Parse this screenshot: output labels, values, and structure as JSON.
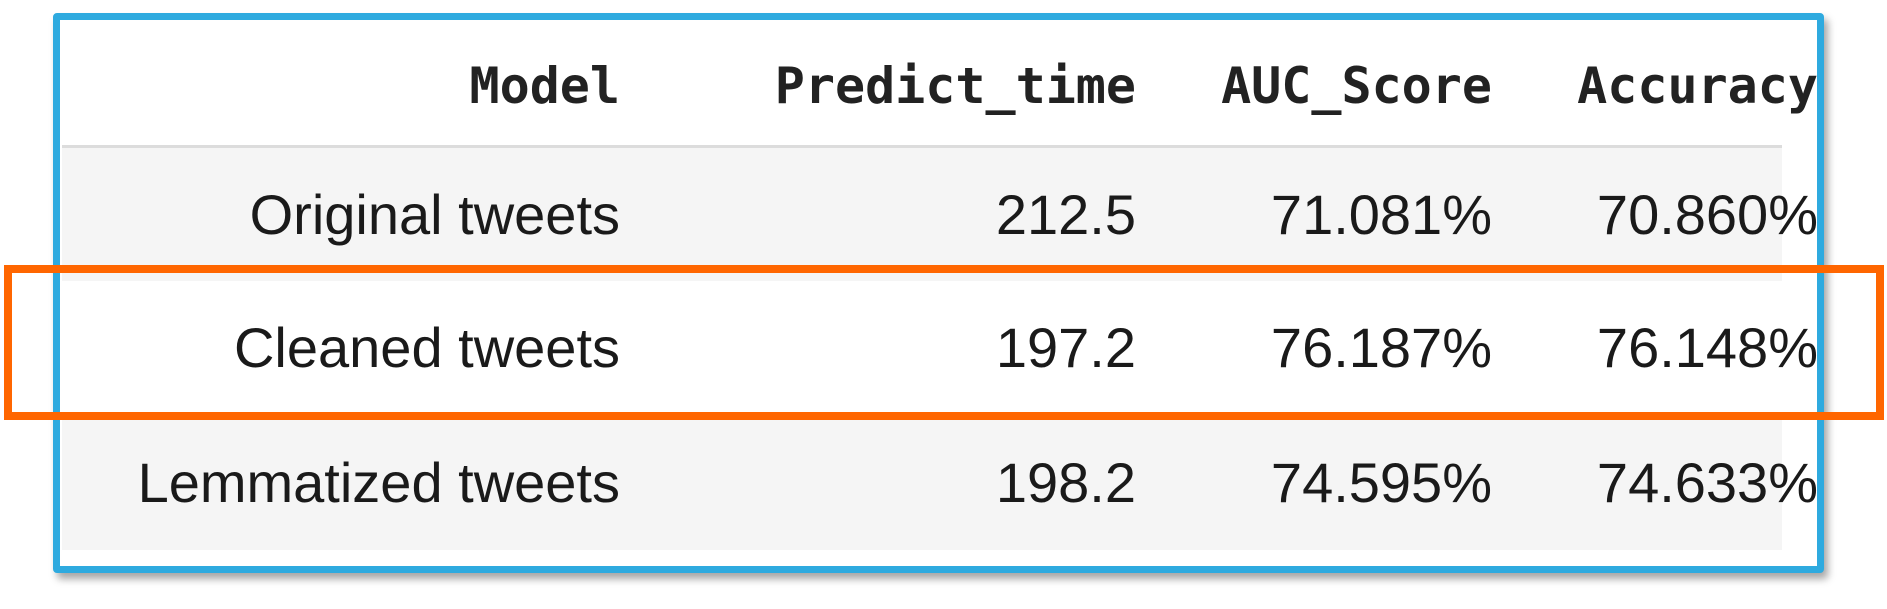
{
  "table": {
    "columns": [
      "Model",
      "Predict_time",
      "AUC_Score",
      "Accuracy"
    ],
    "rows": [
      {
        "model": "Original tweets",
        "predict_time": "212.5",
        "auc_score": "71.081%",
        "accuracy": "70.860%"
      },
      {
        "model": "Cleaned tweets",
        "predict_time": "197.2",
        "auc_score": "76.187%",
        "accuracy": "76.148%"
      },
      {
        "model": "Lemmatized tweets",
        "predict_time": "198.2",
        "auc_score": "74.595%",
        "accuracy": "74.633%"
      }
    ],
    "highlighted_row": 1
  },
  "colors": {
    "table_frame": "#2eaadf",
    "highlight_frame": "#ff6600",
    "striped_row": "#f5f5f5"
  }
}
